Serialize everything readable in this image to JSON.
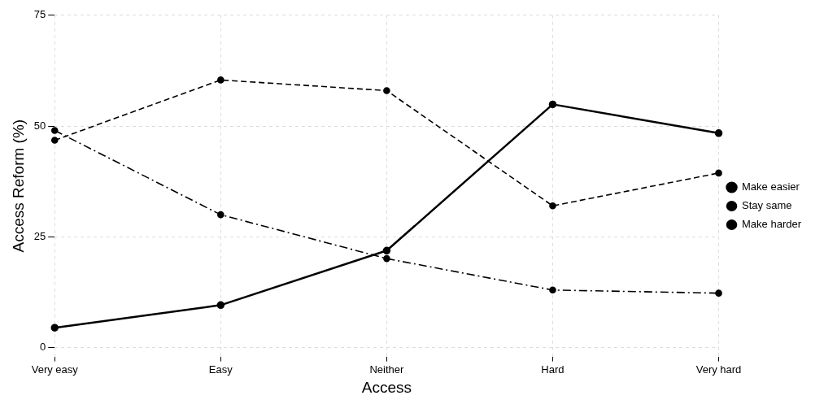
{
  "chart_data": {
    "type": "line",
    "xlabel": "Access",
    "ylabel": "Access Reform (%)",
    "categories": [
      "Very easy",
      "Easy",
      "Neither",
      "Hard",
      "Very hard"
    ],
    "series": [
      {
        "name": "Make easier",
        "color": "#000000",
        "line_style": "solid",
        "values": [
          4.5,
          9.6,
          21.9,
          54.9,
          48.4
        ]
      },
      {
        "name": "Stay same",
        "color": "#000000",
        "line_style": "dashed",
        "values": [
          46.8,
          60.4,
          58.0,
          32.0,
          39.4
        ]
      },
      {
        "name": "Make harder",
        "color": "#000000",
        "line_style": "dashdot",
        "values": [
          49.0,
          30.0,
          20.1,
          13.0,
          12.3
        ]
      }
    ],
    "ylim": [
      -2,
      75
    ],
    "yticks": [
      0,
      25,
      50,
      75
    ],
    "grid": true,
    "legend": "right",
    "marker": "circle"
  }
}
